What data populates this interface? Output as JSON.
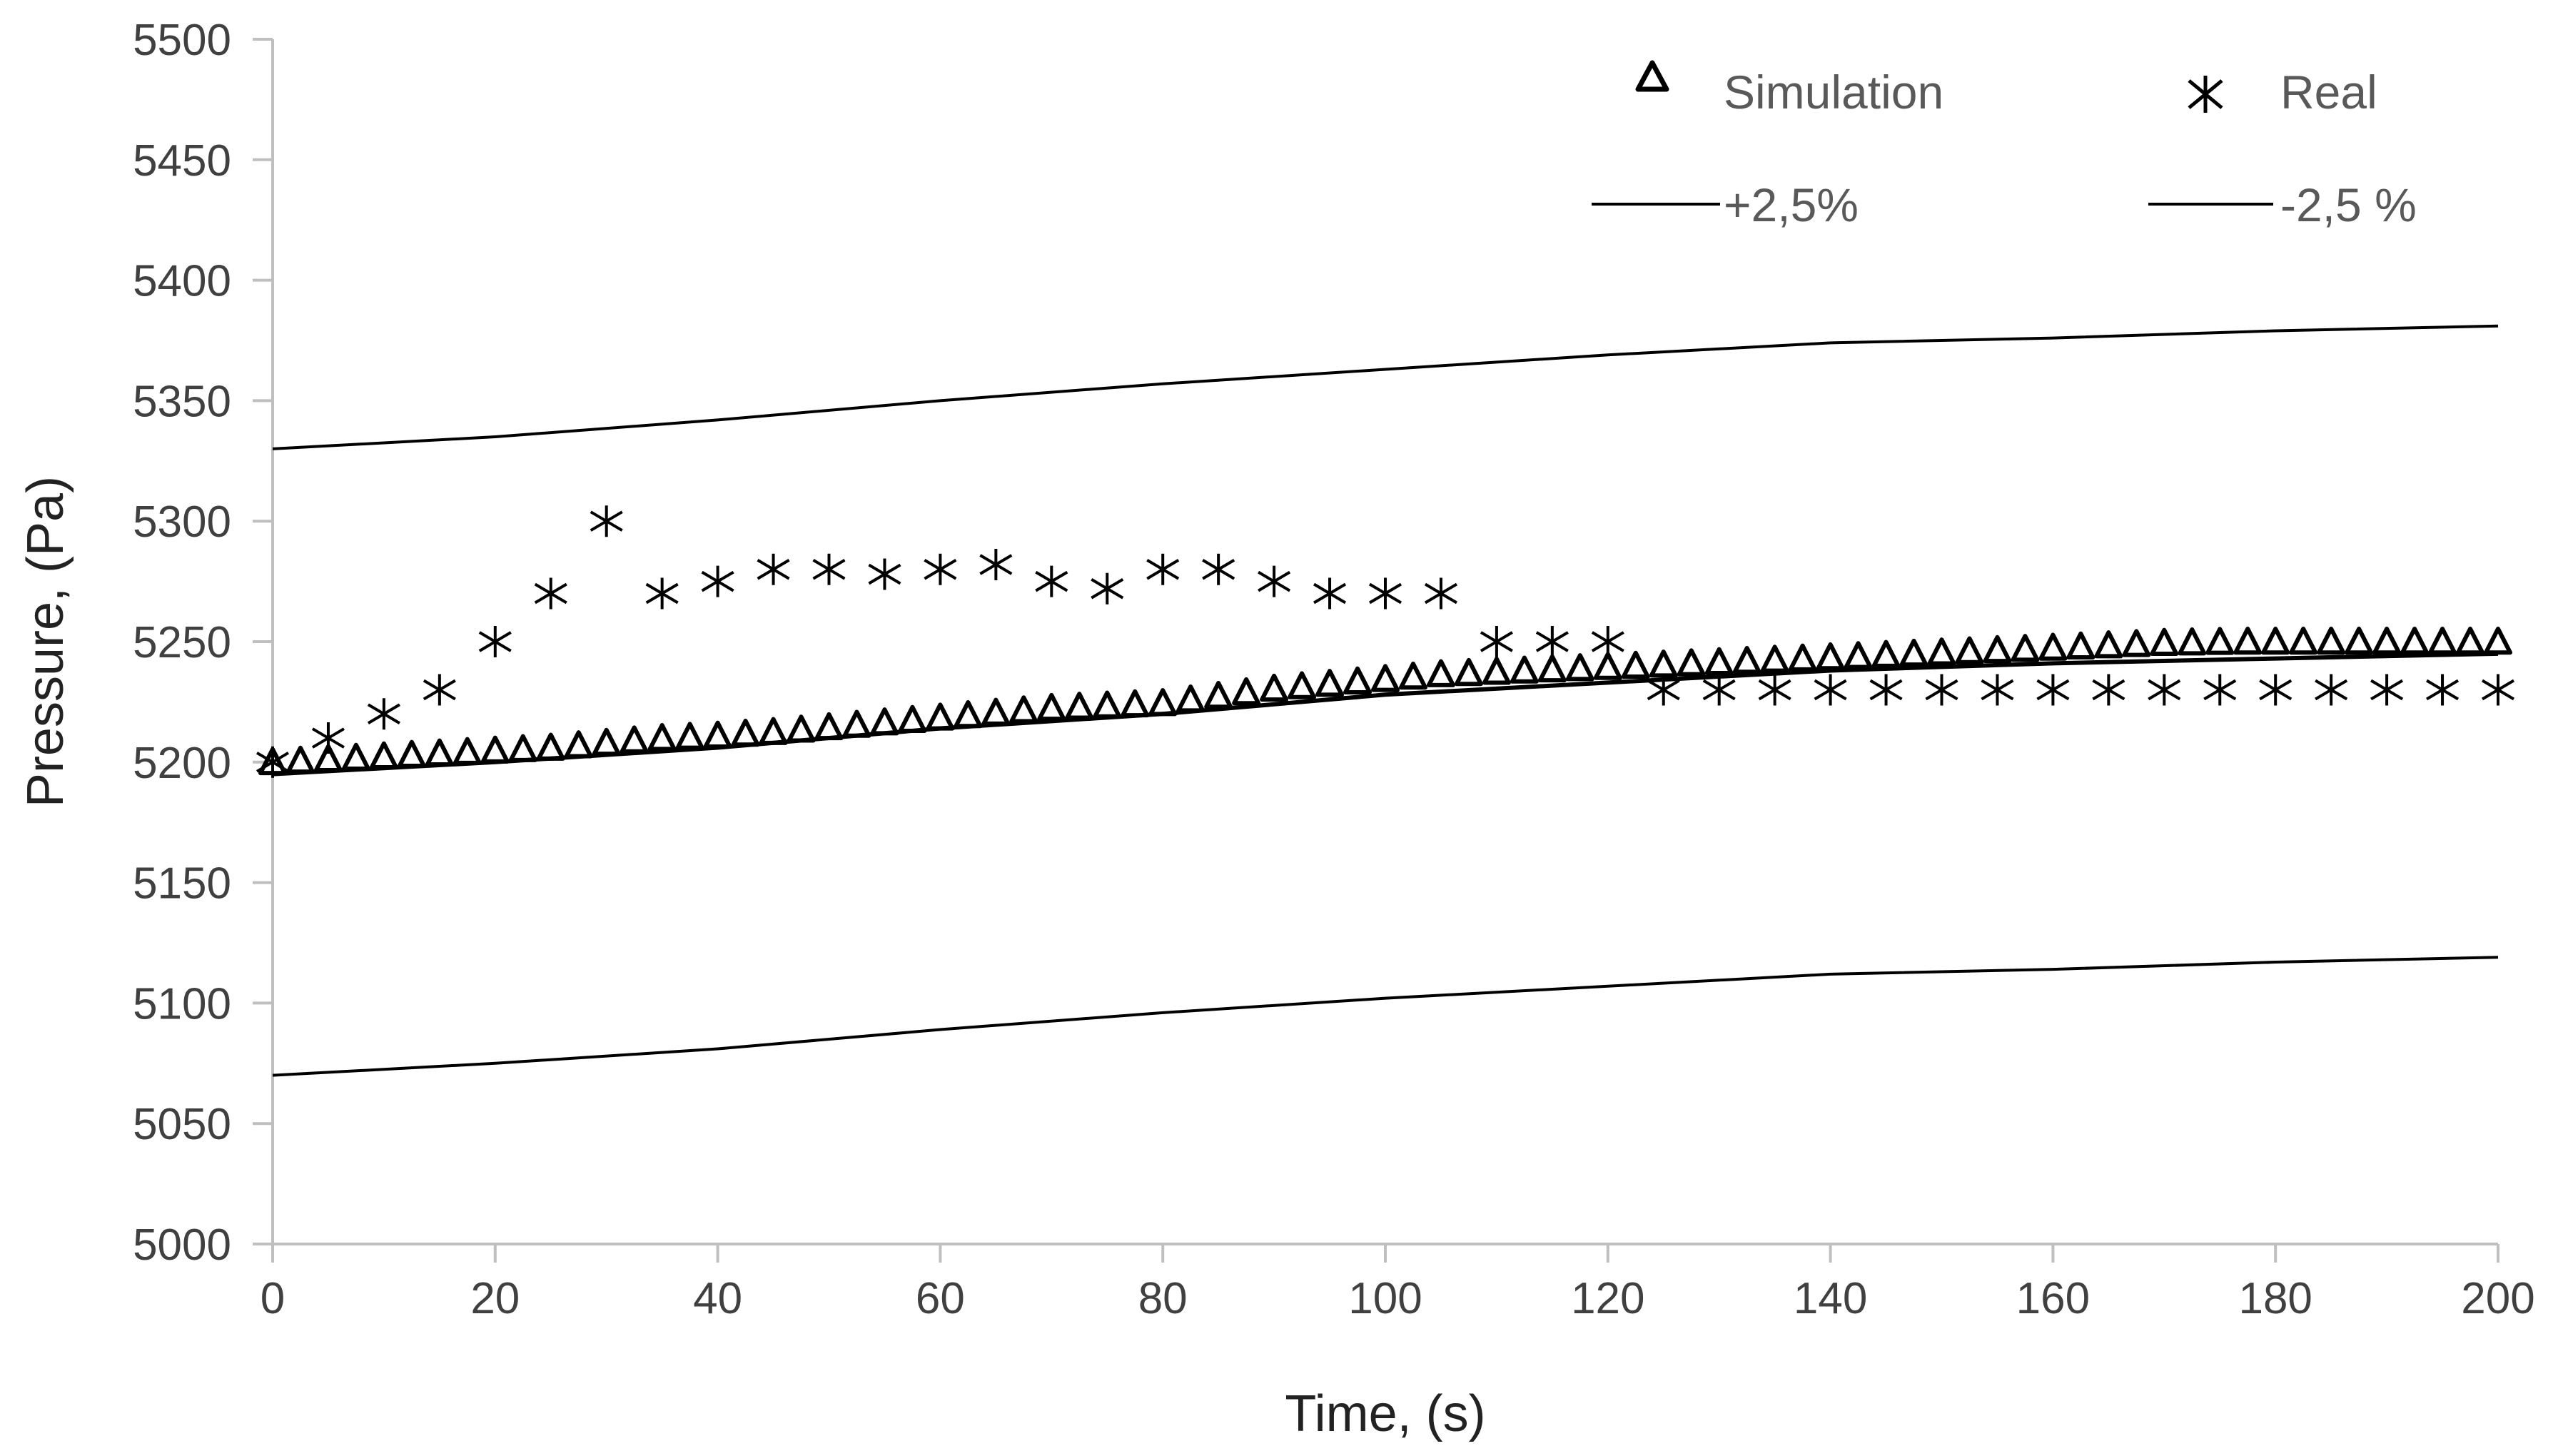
{
  "chart_data": {
    "type": "scatter",
    "title": "",
    "xlabel": "Time, (s)",
    "ylabel": "Pressure, (Pa)",
    "xlim": [
      0,
      200
    ],
    "ylim": [
      5000,
      5500
    ],
    "xticks": [
      "0",
      "20",
      "40",
      "60",
      "80",
      "100",
      "120",
      "140",
      "160",
      "180",
      "200"
    ],
    "yticks": [
      "5000",
      "5050",
      "5100",
      "5150",
      "5200",
      "5250",
      "5300",
      "5350",
      "5400",
      "5450",
      "5500"
    ],
    "grid": false,
    "legend_position": "top-right",
    "series": [
      {
        "name": "Simulation",
        "kind": "marker",
        "marker": "triangle",
        "color": "#000000",
        "x": [
          0,
          2.5,
          5,
          7.5,
          10,
          12.5,
          15,
          17.5,
          20,
          22.5,
          25,
          27.5,
          30,
          32.5,
          35,
          37.5,
          40,
          42.5,
          45,
          47.5,
          50,
          52.5,
          55,
          57.5,
          60,
          62.5,
          65,
          67.5,
          70,
          72.5,
          75,
          77.5,
          80,
          82.5,
          85,
          87.5,
          90,
          92.5,
          95,
          97.5,
          100,
          102.5,
          105,
          107.5,
          110,
          112.5,
          115,
          117.5,
          120,
          122.5,
          125,
          127.5,
          130,
          132.5,
          135,
          137.5,
          140,
          142.5,
          145,
          147.5,
          150,
          152.5,
          155,
          157.5,
          160,
          162.5,
          165,
          167.5,
          170,
          172.5,
          175,
          177.5,
          180,
          182.5,
          185,
          187.5,
          190,
          192.5,
          195,
          197.5,
          200
        ],
        "y": [
          5200,
          5200.6,
          5201.2,
          5201.8,
          5202.4,
          5203,
          5203.6,
          5204.2,
          5204.8,
          5205.4,
          5206,
          5207,
          5208,
          5209,
          5210,
          5210.5,
          5211,
          5211.8,
          5212.5,
          5213.5,
          5214.5,
          5215.5,
          5216.5,
          5217.5,
          5218.5,
          5219.5,
          5220.5,
          5221.5,
          5222.5,
          5223,
          5223.5,
          5224,
          5224.5,
          5226,
          5227.5,
          5229,
          5230.5,
          5231.5,
          5232.5,
          5233.5,
          5234.5,
          5235.5,
          5236.5,
          5237,
          5237.5,
          5238,
          5238.5,
          5239,
          5239.5,
          5240,
          5240.5,
          5241,
          5241.5,
          5242,
          5242.5,
          5243,
          5243.5,
          5244,
          5244.5,
          5245,
          5245.5,
          5246,
          5246.5,
          5247,
          5247.5,
          5248,
          5248.5,
          5249,
          5249.5,
          5249.7,
          5249.9,
          5250,
          5250,
          5250,
          5250,
          5250,
          5250,
          5250,
          5250,
          5250,
          5250
        ]
      },
      {
        "name": "Real",
        "kind": "marker",
        "marker": "asterisk",
        "color": "#000000",
        "x": [
          0,
          5,
          10,
          15,
          20,
          25,
          30,
          35,
          40,
          45,
          50,
          55,
          60,
          65,
          70,
          75,
          80,
          85,
          90,
          95,
          100,
          105,
          110,
          115,
          120,
          125,
          130,
          135,
          140,
          145,
          150,
          155,
          160,
          165,
          170,
          175,
          180,
          185,
          190,
          195,
          200
        ],
        "y": [
          5200,
          5210,
          5220,
          5230,
          5250,
          5270,
          5300,
          5270,
          5275,
          5280,
          5280,
          5278,
          5280,
          5282,
          5275,
          5272,
          5280,
          5280,
          5275,
          5270,
          5270,
          5270,
          5250,
          5250,
          5250,
          5230,
          5230,
          5230,
          5230,
          5230,
          5230,
          5230,
          5230,
          5230,
          5230,
          5230,
          5230,
          5230,
          5230,
          5230,
          5230
        ]
      },
      {
        "name": "+2,5%",
        "kind": "line",
        "color": "#000000",
        "x": [
          0,
          20,
          40,
          60,
          80,
          100,
          120,
          140,
          160,
          180,
          200
        ],
        "y": [
          5330,
          5335,
          5342,
          5350,
          5357,
          5363,
          5369,
          5374,
          5376,
          5379,
          5381
        ]
      },
      {
        "name": "-2,5 %",
        "kind": "line",
        "color": "#000000",
        "x": [
          0,
          20,
          40,
          60,
          80,
          100,
          120,
          140,
          160,
          180,
          200
        ],
        "y": [
          5070,
          5075,
          5081,
          5089,
          5096,
          5102,
          5107,
          5112,
          5114,
          5117,
          5119
        ]
      }
    ],
    "extra_line": {
      "description_visible": false,
      "x": [
        0,
        20,
        40,
        60,
        80,
        100,
        120,
        140,
        160,
        180,
        200
      ],
      "y": [
        5195,
        5200,
        5206,
        5214,
        5220,
        5228,
        5233,
        5238,
        5241,
        5243,
        5245
      ]
    }
  }
}
